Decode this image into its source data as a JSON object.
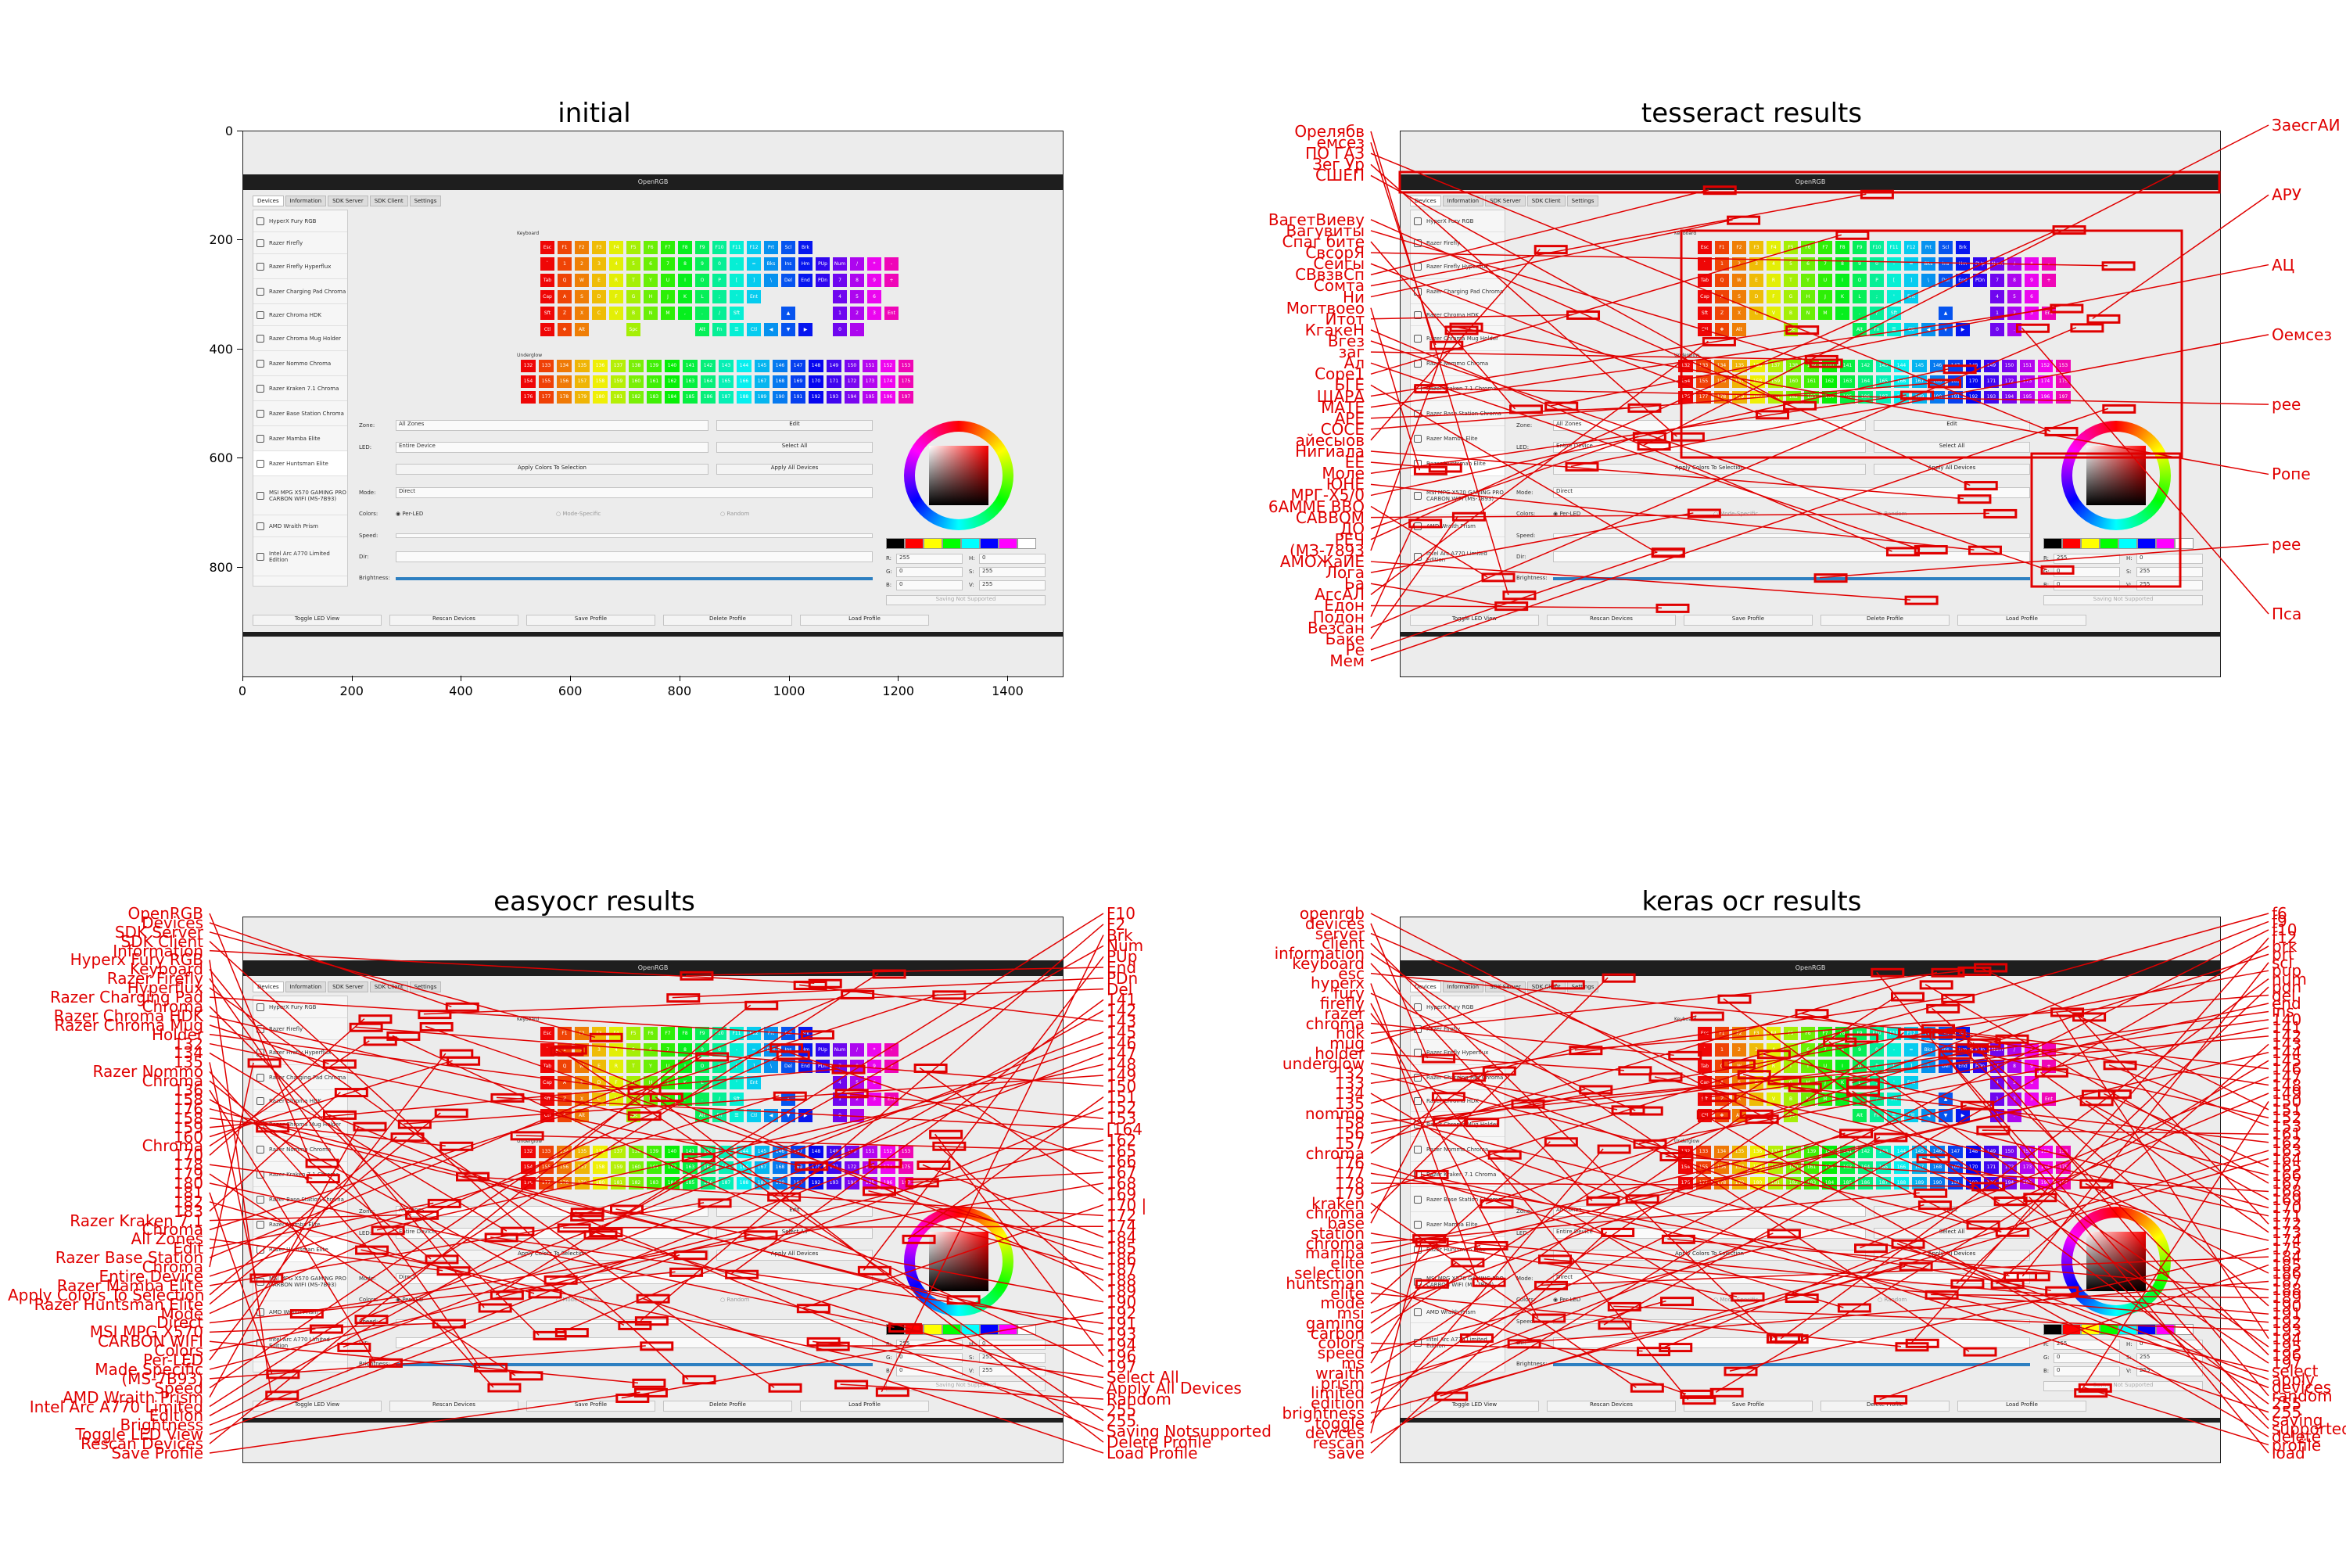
{
  "panels": [
    {
      "id": "initial",
      "title": "initial"
    },
    {
      "id": "tesseract",
      "title": "tesseract  results"
    },
    {
      "id": "easyocr",
      "title": "easyocr results"
    },
    {
      "id": "keras",
      "title": "keras ocr results"
    }
  ],
  "axes": {
    "x_ticks": [
      "0",
      "200",
      "400",
      "600",
      "800",
      "1000",
      "1200",
      "1400"
    ],
    "y_ticks": [
      "0",
      "200",
      "400",
      "600",
      "800"
    ]
  },
  "app": {
    "window_title": "OpenRGB",
    "tabs": [
      "Devices",
      "Information",
      "SDK Server",
      "SDK Client",
      "Settings"
    ],
    "devices": [
      "HyperX Fury RGB",
      "Razer Firefly",
      "Razer Firefly Hyperflux",
      "Razer Charging Pad Chroma",
      "Razer Chroma HDK",
      "Razer Chroma Mug Holder",
      "Razer Nommo Chroma",
      "Razer Kraken 7.1 Chroma",
      "Razer Base Station Chroma",
      "Razer Mamba Elite",
      "Razer Huntsman Elite",
      "MSI MPG X570 GAMING PRO CARBON WIFI (MS-7B93)",
      "AMD Wraith Prism",
      "Intel Arc A770 Limited Edition"
    ],
    "keyboard_label": "Keyboard",
    "underglow_label": "Underglow",
    "key_rows": [
      [
        "Esc",
        "F1",
        "F2",
        "F3",
        "F4",
        "F5",
        "F6",
        "F7",
        "F8",
        "F9",
        "F10",
        "F11",
        "F12",
        "Prt",
        "Scl",
        "Brk",
        "",
        "",
        "",
        "",
        ""
      ],
      [
        "`",
        "1",
        "2",
        "3",
        "4",
        "5",
        "6",
        "7",
        "8",
        "9",
        "0",
        "-",
        "=",
        "Bks",
        "Ins",
        "Hm",
        "PUp",
        "Num",
        "/",
        "*",
        "-"
      ],
      [
        "Tab",
        "Q",
        "W",
        "E",
        "R",
        "T",
        "Y",
        "U",
        "I",
        "O",
        "P",
        "[",
        "]",
        "\\",
        "Del",
        "End",
        "PDn",
        "7",
        "8",
        "9",
        "+"
      ],
      [
        "Cap",
        "A",
        "S",
        "D",
        "F",
        "G",
        "H",
        "J",
        "K",
        "L",
        ";",
        "'",
        "Ent",
        "",
        "",
        "",
        "",
        "4",
        "5",
        "6",
        ""
      ],
      [
        "Sft",
        "Z",
        "X",
        "C",
        "V",
        "B",
        "N",
        "M",
        ",",
        ".",
        "/",
        "Sft",
        "",
        "",
        "▲",
        "",
        "",
        "1",
        "2",
        "3",
        "Ent"
      ],
      [
        "Ctl",
        "❖",
        "Alt",
        "",
        "",
        "Spc",
        "",
        "",
        "",
        "Alt",
        "Fn",
        "☰",
        "Ctl",
        "◀",
        "▼",
        "▶",
        "",
        "0",
        ".",
        "",
        ""
      ]
    ],
    "underglow_rows": [
      [
        "132",
        "133",
        "134",
        "135",
        "136",
        "137",
        "138",
        "139",
        "140",
        "141",
        "142",
        "143",
        "144",
        "145",
        "146",
        "147",
        "148",
        "149",
        "150",
        "151",
        "152",
        "153"
      ],
      [
        "154",
        "155",
        "156",
        "157",
        "158",
        "159",
        "160",
        "161",
        "162",
        "163",
        "164",
        "165",
        "166",
        "167",
        "168",
        "169",
        "170",
        "171",
        "172",
        "173",
        "174",
        "175"
      ],
      [
        "176",
        "177",
        "178",
        "179",
        "180",
        "181",
        "182",
        "183",
        "184",
        "185",
        "186",
        "187",
        "188",
        "189",
        "190",
        "191",
        "192",
        "193",
        "194",
        "195",
        "196",
        "197"
      ]
    ],
    "controls": {
      "zone_label": "Zone:",
      "zone_value": "All Zones",
      "edit_label": "Edit",
      "led_label": "LED:",
      "led_value": "Entire Device",
      "select_all": "Select All",
      "apply_selection": "Apply Colors To Selection",
      "apply_all": "Apply All Devices",
      "mode_label": "Mode:",
      "mode_value": "Direct",
      "colors_label": "Colors:",
      "per_led": "Per-LED",
      "mode_specific": "Mode-Specific",
      "random": "Random",
      "speed_label": "Speed:",
      "dir_label": "Dir:",
      "brightness_label": "Brightness:",
      "r_label": "R:",
      "r_value": "255",
      "g_label": "G:",
      "g_value": "0",
      "b_label": "B:",
      "b_value": "0",
      "h_label": "H:",
      "h_value": "0",
      "s_label": "S:",
      "s_value": "255",
      "v_label": "V:",
      "v_value": "255",
      "saving": "Saving Not Supported"
    },
    "bottom_buttons": [
      "Toggle LED View",
      "Rescan Devices",
      "Save Profile",
      "Delete Profile",
      "Load Profile"
    ],
    "swatch_colors": [
      "#000000",
      "#ff0000",
      "#ffff00",
      "#00ff00",
      "#00ffff",
      "#0000ff",
      "#ff00ff",
      "#ffffff"
    ]
  },
  "tesseract_left": [
    "Орелябв",
    "емсез",
    "ПО ГАЗ",
    "Зег Ур",
    "СШЕП",
    "",
    "",
    "",
    "ВагетВиеву",
    "Вагувиты",
    "Спаг бите",
    "СвсорЯ",
    "Сейгы",
    "СВвзвСп",
    "Сомта",
    "Ни",
    "Могтвоео",
    "Итот",
    "КгакеН",
    "Вгез",
    "заг",
    "Ал",
    "Соре1",
    "БГЕ",
    "ЩАРА",
    "МАТЕ",
    "АРЕ",
    "СОСЕ",
    "айесыов",
    "Нигиала",
    "ЕЕ",
    "Моле",
    "ЮНЕ",
    "МРГ-Х5/0",
    "6АММЕ ВВО",
    "САВВОМ",
    "ДО",
    "РЕЧ",
    "(МЗ-7893",
    "АМОЖаИЕ",
    "Лога",
    "Ьа",
    "АгсАЛ",
    "Едон",
    "Подон",
    "Везсан",
    "Баке",
    "Ре",
    "Мем"
  ],
  "tesseract_right": [
    "ЗаесгАИ",
    "АРУ",
    "АЦ",
    "Оемсез",
    "рее",
    "Ропе",
    "рее",
    "Пса"
  ],
  "easyocr_left": [
    "OpenRGB",
    "Devices",
    "SDK Server",
    "SDK Client",
    "Information",
    "Hyperx Fury RGB",
    "Keyboard",
    "Razer Firefly",
    "Hyperflux",
    "Razer Charging Pad",
    "Chroma",
    "Razer Chroma HDK",
    "Razer Chroma Mug",
    "Holder",
    "132",
    "134",
    "135",
    "Razer Nommo",
    "Chroma",
    "136",
    "158",
    "176",
    "158",
    "159",
    "160",
    "Chroma",
    "170",
    "178",
    "179",
    "180",
    "181",
    "182",
    "183",
    "Razer Kraken 7.1",
    "Chroma",
    "All Zones",
    "Edit",
    "Razer Base Station",
    "Chroma",
    "Entire Device",
    "Razer Mamba Elite",
    "Apply Colors To Selection",
    "Razer Huntsman Elite",
    "Mode",
    "Direct",
    "MSI MPG X570",
    "CARBON WIFI",
    "Colors",
    "Per-LED",
    "Made Specific",
    "(MS-7B93)",
    "Speed",
    "AMD Wraith Prism",
    "Intel Arc A770 Limited",
    "Edition",
    "Brightness",
    "Toggle LED View",
    "Rescan Devices",
    "Save Profile"
  ],
  "easyocr_right": [
    "F10",
    "F2",
    "Brk",
    "Num",
    "PUp",
    "End",
    "PDn",
    "Del",
    "141",
    "142",
    "143",
    "145",
    "146",
    "147",
    "148",
    "149",
    "150",
    "151",
    "152",
    "153",
    "[164",
    "162",
    "165",
    "166",
    "167",
    "168",
    "169",
    "170 |",
    "172",
    "174",
    "184",
    "185",
    "186",
    "187",
    "188",
    "189",
    "190",
    "192",
    "191",
    "193",
    "194",
    "196",
    "197",
    "Select All",
    "Apply All Devices",
    "Random",
    "255",
    "255",
    "Saving Notsupported",
    "Delete Profile",
    "Load Profile"
  ],
  "keras_left": [
    "openrgb",
    "devices",
    "server",
    "client",
    "information",
    "keyboard",
    "esc",
    "hyperx",
    "fury",
    "firefly",
    "razer",
    "chroma",
    "hdk",
    "mug",
    "holder",
    "underglow",
    "132",
    "133",
    "134",
    "135",
    "nommo",
    "158",
    "156",
    "157",
    "chroma",
    "176",
    "177",
    "178",
    "179",
    "kraken",
    "chroma",
    "base",
    "station",
    "chroma",
    "mamba",
    "elite",
    "selection",
    "huntsman",
    "elite",
    "mode",
    "msi",
    "gaming",
    "carbon",
    "colors",
    "speed",
    "ms",
    "wraith",
    "prism",
    "limited",
    "edition",
    "brightness",
    "toggle",
    "devices",
    "rescan",
    "save"
  ],
  "keras_right": [
    "f6",
    "f9",
    "f10",
    "f12",
    "brk",
    "prt",
    "scl",
    "pup",
    "num",
    "pdn",
    "del",
    "end",
    "ins",
    "140",
    "141",
    "142",
    "143",
    "144",
    "145",
    "146",
    "147",
    "148",
    "149",
    "150",
    "151",
    "152",
    "153",
    "161",
    "162",
    "163",
    "164",
    "165",
    "166",
    "167",
    "168",
    "169",
    "170",
    "171",
    "172",
    "173",
    "174",
    "175",
    "184",
    "185",
    "186",
    "187",
    "188",
    "189",
    "190",
    "191",
    "192",
    "193",
    "194",
    "195",
    "196",
    "197",
    "select",
    "apply",
    "devices",
    "random",
    "255",
    "255",
    "saving",
    "supported",
    "delete",
    "profile",
    "load"
  ]
}
